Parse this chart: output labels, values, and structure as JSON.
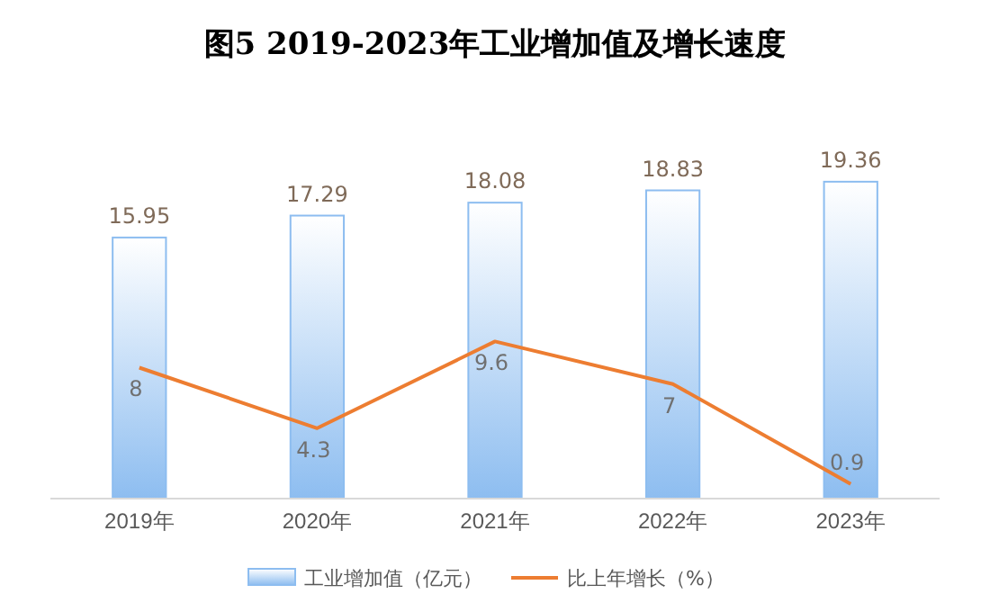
{
  "chart_data": {
    "type": "bar",
    "title": "图5 2019-2023年工业增加值及增长速度",
    "categories": [
      "2019年",
      "2020年",
      "2021年",
      "2022年",
      "2023年"
    ],
    "series": [
      {
        "name": "工业增加值（亿元）",
        "color": "#8dbdf0",
        "values": [
          15.95,
          17.29,
          18.08,
          18.83,
          19.36
        ]
      },
      {
        "name": "比上年增长（%）",
        "type": "line",
        "color": "#ed7d31",
        "values": [
          8,
          4.3,
          9.6,
          7,
          0.9
        ]
      }
    ],
    "tick_labels": "x",
    "data_labels": true,
    "legend": "bottom",
    "marker": "none"
  }
}
